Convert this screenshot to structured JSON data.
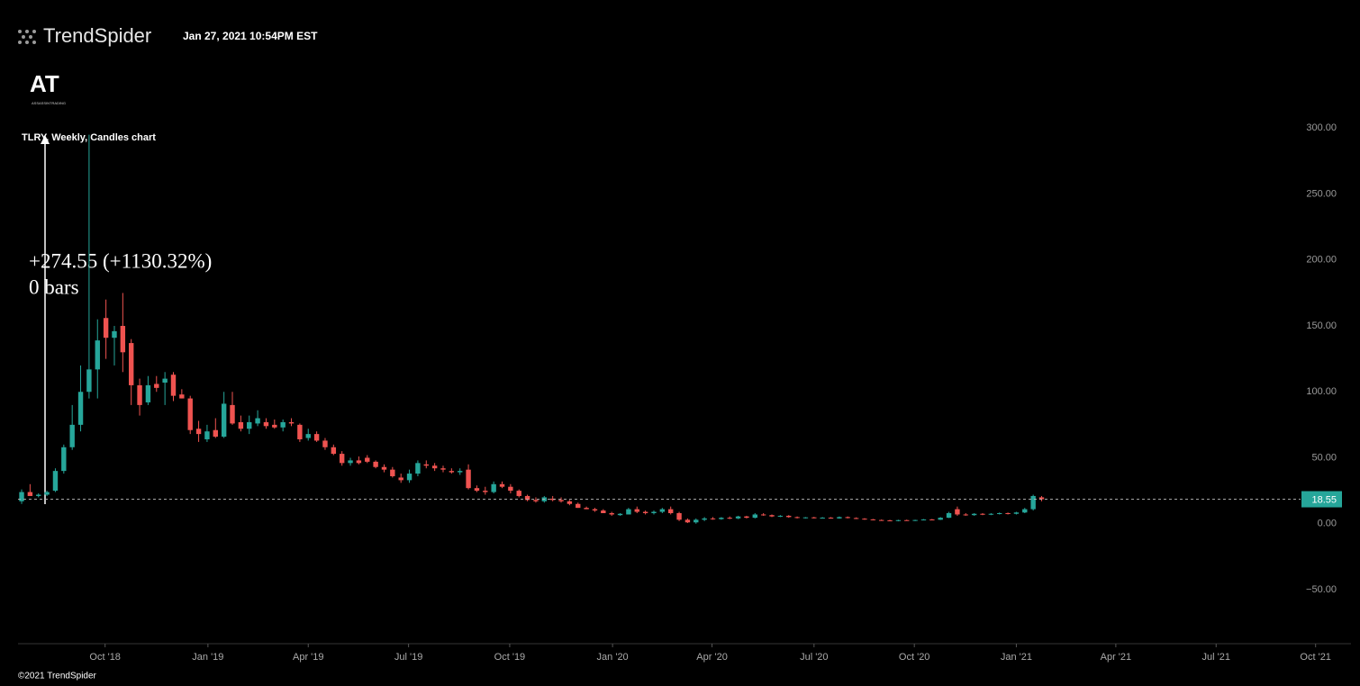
{
  "header": {
    "brand": "TrendSpider",
    "timestamp": "Jan 27, 2021 10:54PM EST",
    "logo": "AT",
    "logo_sub": "ASSASSINTRADING"
  },
  "footer": "©2021 TrendSpider",
  "chart_data": {
    "type": "candlestick",
    "title": "TLRY, Weekly, Candles chart",
    "annotations": [
      "+274.55 (+1130.32%)",
      "0 bars"
    ],
    "up_color": "#26a69a",
    "down_color": "#ef5350",
    "categories": [
      null,
      null,
      null,
      null,
      null,
      null,
      null,
      null,
      null,
      null,
      null,
      null,
      null,
      null,
      null,
      null,
      null,
      null,
      null,
      null,
      null,
      null,
      null,
      null,
      null,
      null,
      null,
      null,
      null,
      null,
      null,
      null,
      null,
      null,
      null,
      null,
      null,
      null,
      null,
      null,
      null,
      null,
      null,
      null,
      null,
      null,
      null,
      null,
      null,
      null,
      null,
      null,
      null,
      null,
      null,
      null,
      null,
      null,
      null,
      null,
      null,
      null,
      null,
      null,
      null,
      null,
      null,
      null,
      null,
      null,
      null,
      null,
      null,
      null,
      null,
      null,
      null,
      null,
      null,
      null,
      null,
      null,
      null,
      null,
      null,
      null,
      null,
      null,
      null,
      null,
      null,
      null,
      null,
      null,
      null,
      null,
      null,
      null,
      null,
      null,
      null,
      null,
      null,
      null,
      null,
      null,
      null,
      null,
      null,
      null,
      null,
      null,
      null,
      null,
      null,
      null,
      null,
      null,
      null,
      null,
      null,
      null
    ],
    "open": [
      17,
      24,
      21,
      22,
      25,
      40,
      58,
      75,
      100,
      117,
      156,
      141,
      150,
      137,
      105,
      92,
      106,
      107,
      113,
      98,
      95,
      72,
      64,
      71,
      66,
      90,
      77,
      72,
      76,
      77,
      75,
      73,
      77,
      75,
      65,
      68,
      63,
      58,
      53,
      46,
      48,
      50,
      47,
      43,
      41,
      35,
      33,
      38,
      45,
      44,
      42,
      40,
      39,
      41,
      27,
      25,
      24,
      30,
      28,
      25,
      21,
      18,
      17,
      19,
      18,
      17,
      15,
      12,
      11,
      10,
      8,
      6.5,
      7,
      11,
      9,
      8,
      9,
      11,
      8,
      3,
      1,
      3,
      4,
      3.5,
      4.5,
      4,
      5.5,
      4.5,
      7,
      6.5,
      5.5,
      6,
      5,
      4.5,
      4.8,
      4.2,
      4.6,
      4,
      5,
      4.3,
      3.8,
      3.3,
      2.8,
      2.5,
      2.3,
      2.7,
      2.4,
      2.8,
      3.2,
      3,
      4.5,
      11,
      7,
      6.5,
      7.5,
      7,
      7.5,
      8,
      7.5,
      8.5,
      11,
      20
    ],
    "high": [
      26,
      30,
      23,
      25,
      42,
      60,
      90,
      120,
      295,
      155,
      170,
      150,
      175,
      140,
      110,
      112,
      112,
      115,
      115,
      102,
      97,
      78,
      75,
      80,
      100,
      100,
      82,
      82,
      86,
      80,
      79,
      79,
      80,
      76,
      72,
      70,
      65,
      60,
      55,
      50,
      51,
      52,
      48,
      45,
      43,
      38,
      41,
      48,
      48,
      46,
      44,
      42,
      42,
      45,
      29,
      28,
      32,
      32,
      30,
      26,
      22,
      20,
      21,
      21,
      20,
      18,
      16,
      13,
      12,
      11,
      9,
      8,
      12,
      13,
      10,
      10,
      12,
      13,
      9,
      4,
      4,
      5,
      5,
      5,
      5.5,
      6,
      6,
      8,
      8,
      7,
      6.5,
      6.5,
      5.5,
      5,
      5.2,
      5,
      5,
      5.5,
      5.5,
      4.8,
      4.2,
      3.6,
      3.2,
      3,
      3,
      3.1,
      3,
      3.5,
      3.6,
      5,
      9,
      13,
      8,
      8,
      8,
      8,
      8.5,
      8.5,
      9,
      12,
      22,
      21
    ],
    "low": [
      15,
      21,
      20,
      21,
      24,
      38,
      56,
      70,
      95,
      95,
      125,
      120,
      115,
      90,
      82,
      90,
      100,
      90,
      93,
      95,
      68,
      62,
      62,
      65,
      65,
      75,
      70,
      68,
      74,
      72,
      72,
      70,
      74,
      62,
      63,
      62,
      56,
      52,
      44,
      44,
      45,
      46,
      42,
      39,
      35,
      31,
      31,
      36,
      42,
      40,
      39,
      38,
      37,
      26,
      24,
      22,
      23,
      27,
      23,
      20,
      17,
      16,
      16,
      17,
      16,
      14,
      12,
      11,
      9,
      8,
      6,
      6,
      7,
      8,
      7,
      7,
      8,
      7,
      2,
      0.5,
      0,
      2,
      3,
      3,
      3.5,
      3.5,
      4,
      4,
      6,
      5,
      5,
      4.5,
      4,
      4,
      4,
      4,
      3.8,
      3.8,
      4,
      3.5,
      3,
      2.5,
      2.2,
      2,
      1.8,
      2.2,
      2,
      2.5,
      2.6,
      2.8,
      4.3,
      6,
      6,
      6,
      6.5,
      6.5,
      7,
      7,
      7,
      8,
      10,
      17
    ],
    "close": [
      24,
      21,
      22,
      24,
      40,
      58,
      75,
      100,
      117,
      139,
      141,
      146,
      130,
      105,
      90,
      105,
      103,
      110,
      97,
      95,
      71,
      68,
      70,
      66,
      91,
      76,
      72,
      77,
      80,
      74,
      73,
      77,
      76,
      64,
      68,
      63,
      58,
      53,
      46,
      48,
      46,
      47,
      43,
      41,
      36,
      33,
      38,
      46,
      44,
      42,
      41,
      39,
      40,
      27,
      25,
      24,
      30,
      28,
      25,
      21,
      18,
      17,
      20,
      18,
      17,
      15,
      12,
      11,
      10,
      8,
      7,
      7.5,
      11,
      9,
      8,
      9,
      11,
      8,
      3,
      1,
      3,
      4,
      3.5,
      4.5,
      4,
      5.5,
      4.5,
      7,
      6.5,
      5.5,
      6,
      5,
      4.5,
      4.8,
      4.2,
      4.6,
      4,
      5,
      4.3,
      3.8,
      3.3,
      2.8,
      2.5,
      2.3,
      2.7,
      2.4,
      2.8,
      3.2,
      3,
      4.5,
      8,
      7,
      6.5,
      7.5,
      7,
      7.5,
      8,
      7.5,
      8.5,
      11,
      21,
      18.55
    ],
    "last_price": 18.55,
    "xlim": [
      -0.43,
      157.7
    ],
    "xticks": [
      {
        "value": 9.9,
        "label": "Oct '18"
      },
      {
        "value": 22.1,
        "label": "Jan '19"
      },
      {
        "value": 34.0,
        "label": "Apr '19"
      },
      {
        "value": 45.9,
        "label": "Jul '19"
      },
      {
        "value": 57.9,
        "label": "Oct '19"
      },
      {
        "value": 70.1,
        "label": "Jan '20"
      },
      {
        "value": 81.9,
        "label": "Apr '20"
      },
      {
        "value": 94.0,
        "label": "Jul '20"
      },
      {
        "value": 105.9,
        "label": "Oct '20"
      },
      {
        "value": 118.0,
        "label": "Jan '21"
      },
      {
        "value": 129.8,
        "label": "Apr '21"
      },
      {
        "value": 141.7,
        "label": "Jul '21"
      },
      {
        "value": 153.5,
        "label": "Oct '21"
      }
    ],
    "ylim": [
      -91,
      305
    ],
    "yticks": [
      {
        "value": -50,
        "label": "−50.00"
      },
      {
        "value": 0,
        "label": "0.00"
      },
      {
        "value": 50,
        "label": "50.00"
      },
      {
        "value": 100,
        "label": "100.00"
      },
      {
        "value": 150,
        "label": "150.00"
      },
      {
        "value": 200,
        "label": "200.00"
      },
      {
        "value": 250,
        "label": "250.00"
      },
      {
        "value": 300,
        "label": "300.00"
      }
    ]
  }
}
